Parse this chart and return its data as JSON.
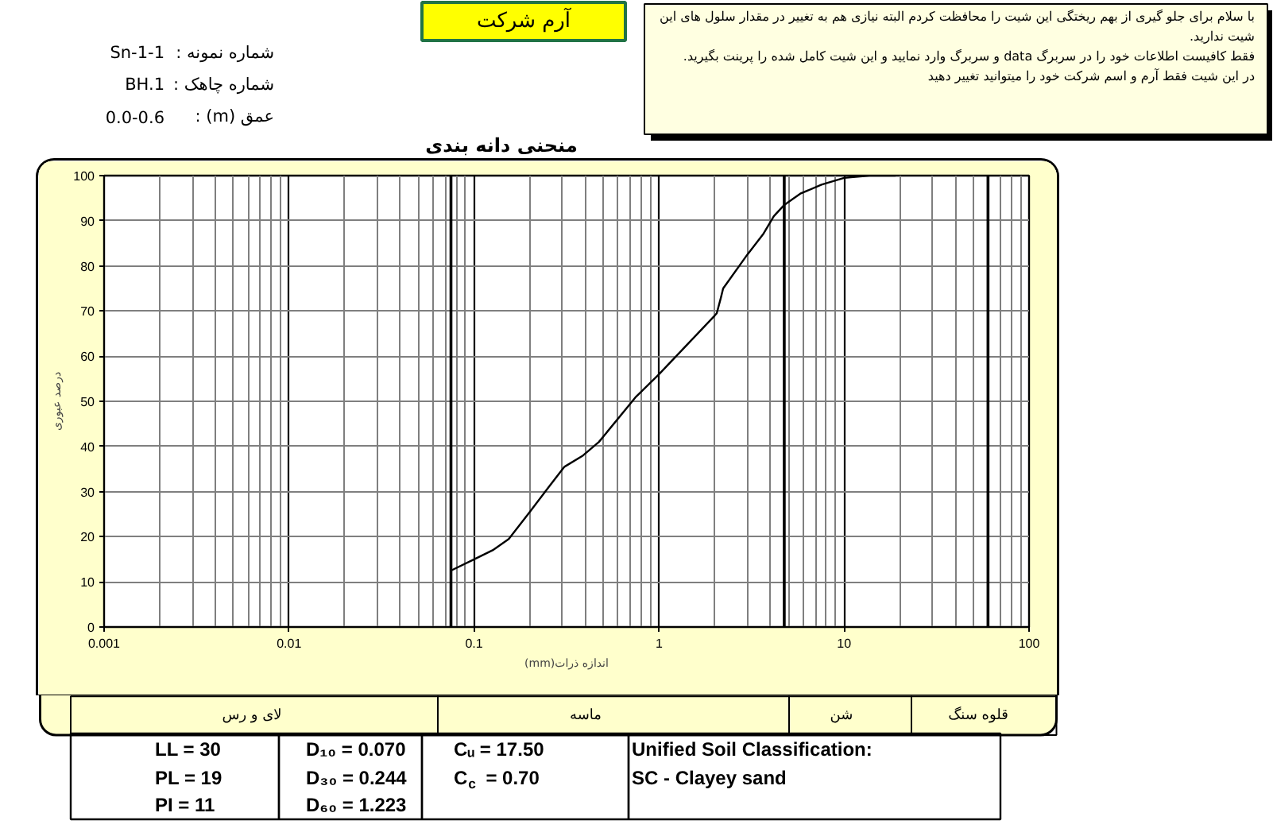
{
  "chart_data": {
    "type": "line",
    "title": "منحنی دانه بندی",
    "xlabel": "اندازه ذرات(mm)",
    "ylabel": "درصد عبوری",
    "x": [
      0.075,
      0.1,
      0.126,
      0.154,
      0.2,
      0.253,
      0.308,
      0.388,
      0.473,
      0.75,
      1,
      2,
      2.05,
      2.16,
      2.22,
      3,
      3.65,
      4.17,
      4.75,
      5.8,
      7.55,
      10,
      13.7,
      19
    ],
    "values": [
      12.5,
      15,
      17,
      19.5,
      25.5,
      31,
      35.5,
      38,
      41,
      51,
      56,
      69,
      69.5,
      73,
      75,
      82.5,
      87,
      91,
      93.5,
      96,
      98,
      99.5,
      100,
      100
    ],
    "color": "#000000",
    "log": "x",
    "xlim": [
      0.001,
      100
    ],
    "xticks": [
      0.001,
      0.01,
      0.1,
      1,
      10,
      100
    ],
    "ylim": [
      0,
      100
    ],
    "yticks": [
      0,
      10,
      20,
      30,
      40,
      50,
      60,
      70,
      80,
      90,
      100
    ],
    "grid": true,
    "ref_lines": [
      {
        "axis": "x",
        "value": 0.075,
        "color": "#000000"
      },
      {
        "axis": "x",
        "value": 4.75,
        "color": "#000000"
      },
      {
        "axis": "x",
        "value": 60,
        "color": "#000000"
      }
    ],
    "annotations": [
      "آرم شرکت",
      "شماره نمونه :",
      "Sn-1-1",
      "شماره چاهک :",
      "BH.1",
      "عمق (m) :",
      "0.0-0.6",
      "با سلام برای جلو گیری از بهم ریختگی این شیت را محافظت کردم البته نیازی هم به تغییر در مقدار سلول های این شیت ندارید.",
      "فقط کافیست اطلاعات خود را در سربرگ data و سربرگ وارد نمایید و این شیت کامل شده را پرینت بگیرید.",
      "در این شیت فقط آرم و اسم شرکت خود را میتوانید تغییر دهید",
      "لای و رس",
      "ماسه",
      "شن",
      "قلوه سنگ",
      "LL = 30",
      "PL = 19",
      "PI = 11",
      "D₁₀ = 0.070",
      "D₃₀ = 0.244",
      "D₆₀ = 1.223",
      "Cᵤ = 17.50",
      "C$_{c}$ = 0.70",
      "Unified Soil Classification:",
      "SC - Clayey sand"
    ]
  }
}
